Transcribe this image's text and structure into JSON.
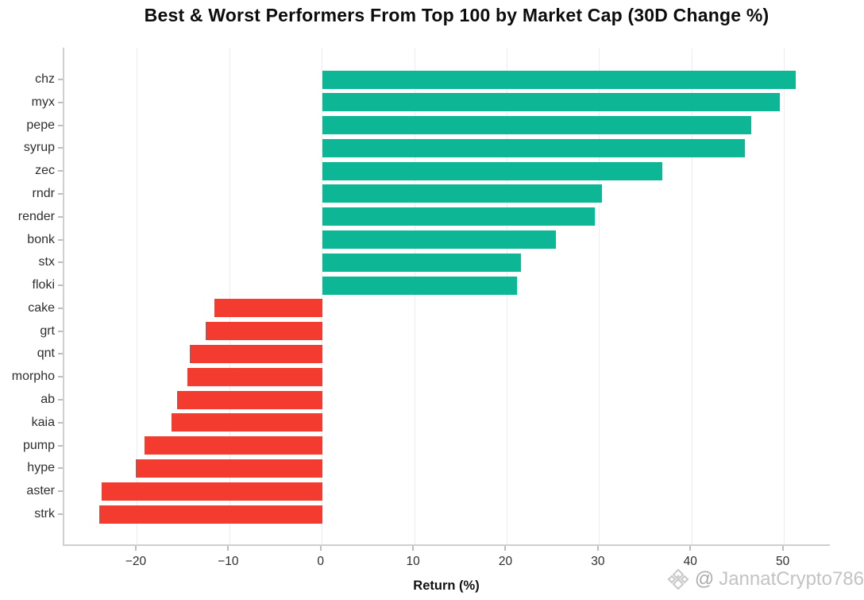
{
  "title": "Best & Worst Performers From Top 100 by Market Cap  (30D Change %)",
  "watermark": {
    "logo_icon": "binance-diamond-icon",
    "at_symbol": "@",
    "handle": "JannatCrypto786"
  },
  "colors": {
    "positive": "#0db694",
    "negative": "#f43b30",
    "grid": "#ececec",
    "spine": "#cfcfcf",
    "tick_label": "#2e2e2e",
    "watermark": "#c3c3c3"
  },
  "chart_data": {
    "type": "bar",
    "orientation": "horizontal",
    "title": "Best & Worst Performers From Top 100 by Market Cap  (30D Change %)",
    "xlabel": "Return (%)",
    "ylabel": "",
    "categories": [
      "chz",
      "myx",
      "pepe",
      "syrup",
      "zec",
      "rndr",
      "render",
      "bonk",
      "stx",
      "floki",
      "cake",
      "grt",
      "qnt",
      "morpho",
      "ab",
      "kaia",
      "pump",
      "hype",
      "aster",
      "strk"
    ],
    "values": [
      51.2,
      49.5,
      46.4,
      45.7,
      36.8,
      30.3,
      29.5,
      25.3,
      21.5,
      21.1,
      -11.7,
      -12.6,
      -14.3,
      -14.6,
      -15.7,
      -16.3,
      -19.2,
      -20.2,
      -23.9,
      -24.1
    ],
    "xticks": [
      -20,
      -10,
      0,
      10,
      20,
      30,
      40,
      50
    ],
    "xlim": [
      -27.9,
      55.1
    ],
    "grid": true,
    "legend": false
  }
}
